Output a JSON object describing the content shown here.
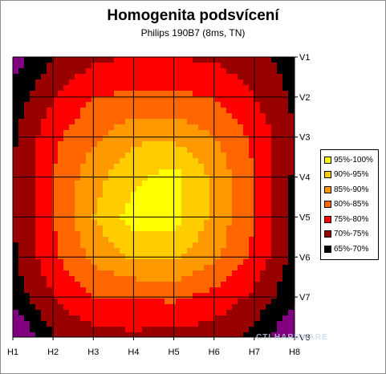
{
  "chart_data": {
    "type": "heatmap",
    "title": "Homogenita podsvícení",
    "subtitle": "Philips 190B7 (8ms, TN)",
    "x_labels": [
      "H1",
      "H2",
      "H3",
      "H4",
      "H5",
      "H6",
      "H7",
      "H8"
    ],
    "y_labels": [
      "V1",
      "V2",
      "V3",
      "V4",
      "V5",
      "V6",
      "V7",
      "V8"
    ],
    "grid": true,
    "legend_position": "right",
    "levels": [
      {
        "label": "95%-100%",
        "min": 95,
        "max": 100,
        "color": "#ffff00"
      },
      {
        "label": "90%-95%",
        "min": 90,
        "max": 95,
        "color": "#ffcc00"
      },
      {
        "label": "85%-90%",
        "min": 85,
        "max": 90,
        "color": "#ff9900"
      },
      {
        "label": "80%-85%",
        "min": 80,
        "max": 85,
        "color": "#ff6600"
      },
      {
        "label": "75%-80%",
        "min": 75,
        "max": 80,
        "color": "#ff0000"
      },
      {
        "label": "70%-75%",
        "min": 70,
        "max": 75,
        "color": "#990000"
      },
      {
        "label": "65%-70%",
        "min": 65,
        "max": 70,
        "color": "#000000"
      }
    ],
    "values": [
      [
        62,
        70,
        74,
        75,
        75,
        74,
        72,
        67
      ],
      [
        67,
        75,
        80,
        81,
        81,
        80,
        75,
        69
      ],
      [
        69,
        79,
        84,
        89,
        89,
        85,
        79,
        70
      ],
      [
        70,
        80,
        88,
        94,
        97,
        89,
        80,
        69
      ],
      [
        70,
        80,
        90,
        97,
        97,
        89,
        80,
        69
      ],
      [
        69,
        79,
        86,
        91,
        91,
        86,
        79,
        68
      ],
      [
        67,
        75,
        80,
        80,
        81,
        78,
        74,
        66
      ],
      [
        58,
        70,
        73,
        74,
        73,
        73,
        68,
        60
      ]
    ]
  },
  "watermark": "CTI HARDWARE"
}
